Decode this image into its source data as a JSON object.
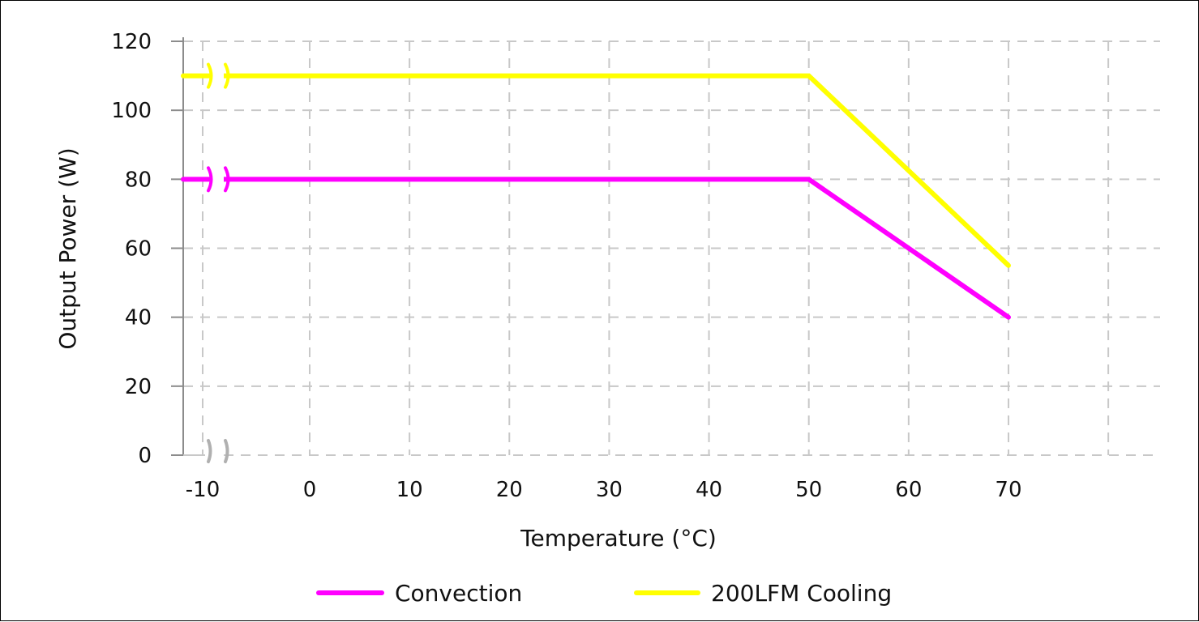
{
  "chart_data": {
    "type": "line",
    "title": "",
    "xlabel": "Temperature (°C)",
    "ylabel": "Output Power (W)",
    "x_ticks": [
      "-10",
      "0",
      "10",
      "20",
      "30",
      "40",
      "50",
      "60",
      "70"
    ],
    "y_ticks": [
      "0",
      "20",
      "40",
      "60",
      "80",
      "100",
      "120"
    ],
    "xlim": [
      -10,
      80
    ],
    "ylim": [
      0,
      120
    ],
    "grid": true,
    "axis_break": "x-axis break between -10 and 0",
    "legend_position": "bottom",
    "series": [
      {
        "name": "Convection",
        "color": "#ff00ff",
        "points": [
          [
            -10,
            80
          ],
          [
            50,
            80
          ],
          [
            70,
            40
          ]
        ]
      },
      {
        "name": "200LFM Cooling",
        "color": "#ffff00",
        "points": [
          [
            -10,
            110
          ],
          [
            50,
            110
          ],
          [
            70,
            55
          ]
        ]
      }
    ]
  }
}
